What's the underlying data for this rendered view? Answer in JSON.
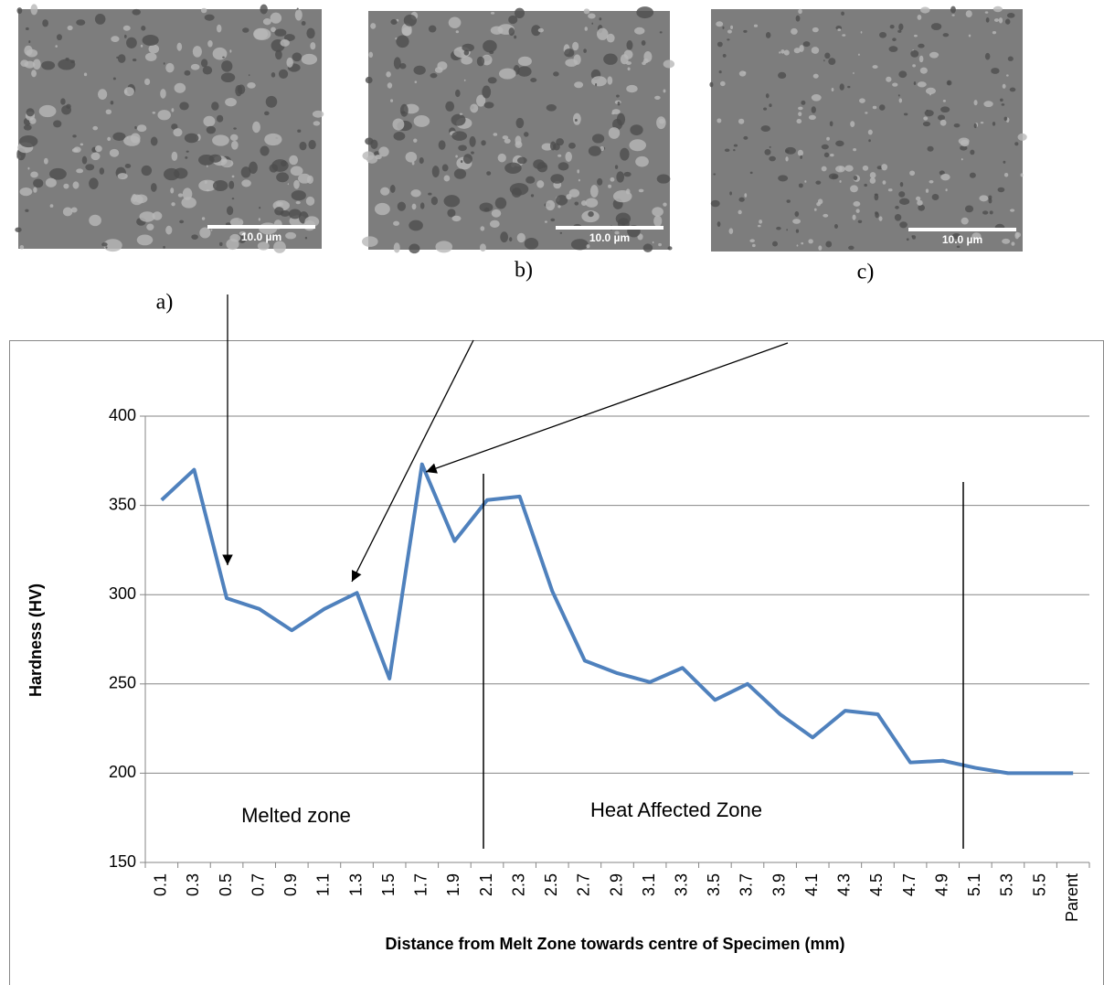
{
  "figures": [
    {
      "label": "a)",
      "scale": "10.0 µm"
    },
    {
      "label": "b)",
      "scale": "10.0 µm"
    },
    {
      "label": "c)",
      "scale": "10.0 µm"
    }
  ],
  "chart_data": {
    "type": "line",
    "x_label": "Distance from Melt Zone towards centre of Specimen (mm)",
    "y_label": "Hardness (HV)",
    "categories": [
      "0.1",
      "0.3",
      "0.5",
      "0.7",
      "0.9",
      "1.1",
      "1.3",
      "1.5",
      "1.7",
      "1.9",
      "2.1",
      "2.3",
      "2.5",
      "2.7",
      "2.9",
      "3.1",
      "3.3",
      "3.5",
      "3.7",
      "3.9",
      "4.1",
      "4.3",
      "4.5",
      "4.7",
      "4.9",
      "5.1",
      "5.3",
      "5.5",
      "Parent"
    ],
    "series": [
      {
        "color": "#4f81bd",
        "values": [
          353,
          370,
          298,
          292,
          280,
          292,
          301,
          253,
          373,
          330,
          353,
          355,
          302,
          263,
          256,
          251,
          259,
          241,
          250,
          233,
          220,
          235,
          233,
          206,
          207,
          203,
          200,
          200,
          200
        ]
      }
    ],
    "ylim": [
      150,
      400
    ],
    "yticks": [
      150,
      200,
      250,
      300,
      350,
      400
    ],
    "grid": true,
    "annotations": [
      "Melted zone",
      "Heat Affected Zone"
    ]
  }
}
